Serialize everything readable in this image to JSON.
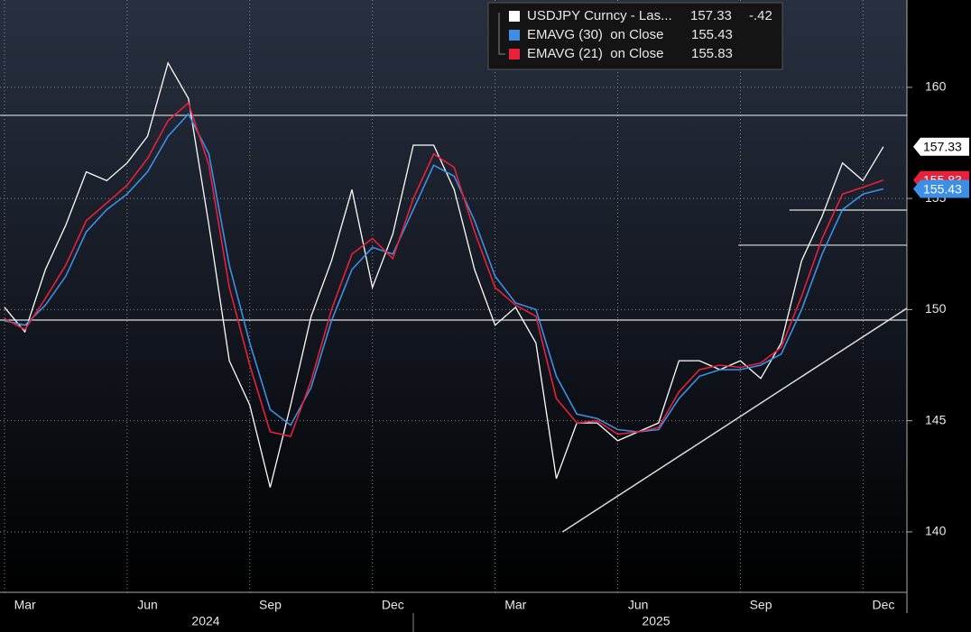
{
  "chart_data": {
    "type": "line",
    "categories": [
      null,
      "Mar",
      null,
      null,
      null,
      null,
      null,
      "Jun",
      null,
      null,
      null,
      null,
      null,
      "Sep",
      null,
      null,
      null,
      null,
      null,
      "Dec",
      null,
      null,
      null,
      null,
      null,
      "Mar",
      null,
      null,
      null,
      null,
      null,
      "Jun",
      null,
      null,
      null,
      null,
      null,
      "Sep",
      null,
      null,
      null,
      null,
      null,
      "Dec"
    ],
    "years": [
      "2024",
      "2025"
    ],
    "series": [
      {
        "name": "USDJPY Curncy - Las...",
        "color": "#ffffff",
        "last": 157.33,
        "change": {
          "value": -0.42,
          "label": "-.42"
        },
        "values": [
          150.1,
          149,
          151.8,
          153.8,
          156.2,
          155.8,
          156.6,
          157.8,
          161.1,
          159.5,
          153.8,
          147.7,
          145.7,
          142,
          145.7,
          149.7,
          152.2,
          155.4,
          151,
          153.4,
          157.4,
          157.4,
          155.4,
          151.8,
          149.3,
          150.1,
          148.5,
          142.4,
          144.9,
          144.9,
          144.1,
          144.5,
          144.9,
          147.7,
          147.7,
          147.3,
          147.7,
          146.9,
          148.5,
          152.2,
          154.2,
          156.6,
          155.8,
          157.33
        ]
      },
      {
        "name": "EMAVG (30)  on Close",
        "color": "#3d8fe6",
        "last": 155.43,
        "values": [
          149.5,
          149.3,
          150.2,
          151.5,
          153.5,
          154.5,
          155.2,
          156.2,
          157.8,
          158.8,
          157,
          152,
          148.5,
          145.5,
          144.8,
          146.5,
          149.5,
          151.8,
          152.8,
          152.5,
          154.5,
          156.5,
          156,
          154,
          151.5,
          150.3,
          150,
          147,
          145.3,
          145.1,
          144.6,
          144.5,
          144.6,
          146,
          147,
          147.3,
          147.3,
          147.5,
          148,
          150,
          152.5,
          154.5,
          155.2,
          155.43
        ]
      },
      {
        "name": "EMAVG (21)  on Close",
        "color": "#e8203a",
        "last": 155.83,
        "values": [
          149.6,
          149.1,
          150.5,
          152,
          154,
          154.8,
          155.6,
          156.8,
          158.5,
          159.3,
          156.5,
          151,
          147.5,
          144.5,
          144.3,
          146.8,
          150,
          152.5,
          153.2,
          152.3,
          155,
          157,
          156.4,
          153.5,
          151,
          150.2,
          149.7,
          146,
          144.9,
          145,
          144.4,
          144.5,
          144.7,
          146.3,
          147.3,
          147.5,
          147.4,
          147.6,
          148.3,
          150.6,
          153.2,
          155.2,
          155.5,
          155.83
        ]
      }
    ],
    "ylim": [
      137.28,
      163.93
    ],
    "yticks": [
      140,
      145,
      150,
      155,
      160
    ],
    "grid": true,
    "hlines": [
      {
        "value": 158.74,
        "from": -1
      },
      {
        "value": 149.53,
        "from": -1
      },
      {
        "value": 154.48,
        "from": 38.4
      },
      {
        "value": 152.9,
        "from": 35.9
      }
    ],
    "trendline": {
      "x": [
        27.3,
        44.6
      ],
      "y": [
        140,
        150.06
      ]
    }
  }
}
